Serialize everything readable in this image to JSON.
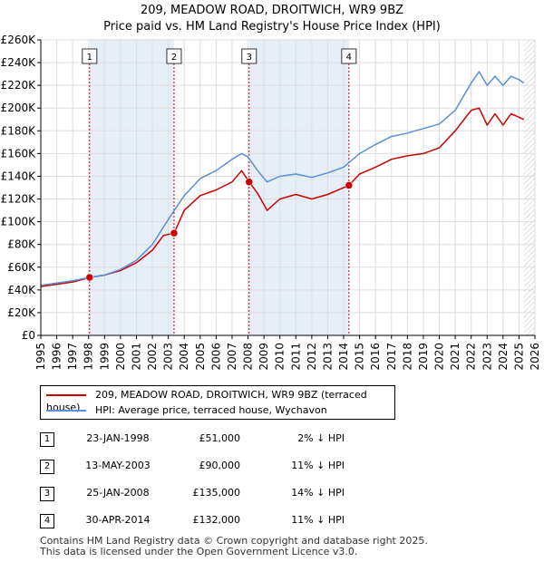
{
  "title_line1": "209, MEADOW ROAD, DROITWICH, WR9 9BZ",
  "title_line2": "Price paid vs. HM Land Registry's House Price Index (HPI)",
  "colors": {
    "red": "#cc0000",
    "blue": "#5b8fd6",
    "shade": "#e6eef8",
    "marker": "#cc0000"
  },
  "legend": {
    "property": "209, MEADOW ROAD, DROITWICH, WR9 9BZ (terraced house)",
    "hpi": "HPI: Average price, terraced house, Wychavon"
  },
  "sales": [
    {
      "num": "1",
      "date": "23-JAN-1998",
      "price": "£51,000",
      "diff": "2% ↓ HPI"
    },
    {
      "num": "2",
      "date": "13-MAY-2003",
      "price": "£90,000",
      "diff": "11% ↓ HPI"
    },
    {
      "num": "3",
      "date": "25-JAN-2008",
      "price": "£135,000",
      "diff": "14% ↓ HPI"
    },
    {
      "num": "4",
      "date": "30-APR-2014",
      "price": "£132,000",
      "diff": "11% ↓ HPI"
    }
  ],
  "footer_line1": "Contains HM Land Registry data © Crown copyright and database right 2025.",
  "footer_line2": "This data is licensed under the Open Government Licence v3.0.",
  "chart_data": {
    "type": "line",
    "xlim": [
      1995,
      2026
    ],
    "ylim": [
      0,
      260000
    ],
    "x_ticks": [
      1995,
      1996,
      1997,
      1998,
      1999,
      2000,
      2001,
      2002,
      2003,
      2004,
      2005,
      2006,
      2007,
      2008,
      2009,
      2010,
      2011,
      2012,
      2013,
      2014,
      2015,
      2016,
      2017,
      2018,
      2019,
      2020,
      2021,
      2022,
      2023,
      2024,
      2025,
      2026
    ],
    "y_ticks": [
      0,
      20000,
      40000,
      60000,
      80000,
      100000,
      120000,
      140000,
      160000,
      180000,
      200000,
      220000,
      240000,
      260000
    ],
    "y_tick_labels": [
      "£0",
      "£20K",
      "£40K",
      "£60K",
      "£80K",
      "£100K",
      "£120K",
      "£140K",
      "£160K",
      "£180K",
      "£200K",
      "£220K",
      "£240K",
      "£260K"
    ],
    "grid": true,
    "shaded_periods": [
      [
        1998.06,
        2003.36
      ],
      [
        2008.07,
        2014.33
      ]
    ],
    "hatched_after": 2025.3,
    "sale_markers": [
      {
        "label": "1",
        "x": 1998.06,
        "y": 51000
      },
      {
        "label": "2",
        "x": 2003.36,
        "y": 90000
      },
      {
        "label": "3",
        "x": 2008.07,
        "y": 135000
      },
      {
        "label": "4",
        "x": 2014.33,
        "y": 132000
      }
    ],
    "series": [
      {
        "name": "209, MEADOW ROAD, DROITWICH, WR9 9BZ (terraced house)",
        "color": "red",
        "x": [
          1995,
          1996,
          1997,
          1998.06,
          1999,
          2000,
          2001,
          2002,
          2002.7,
          2003.36,
          2004,
          2005,
          2006,
          2007,
          2007.6,
          2008.07,
          2008.6,
          2009.2,
          2010,
          2011,
          2012,
          2013,
          2014.33,
          2015,
          2016,
          2017,
          2018,
          2019,
          2020,
          2021,
          2022,
          2022.5,
          2023,
          2023.5,
          2024,
          2024.5,
          2025,
          2025.3
        ],
        "y": [
          43000,
          45000,
          47000,
          51000,
          53000,
          57000,
          64000,
          75000,
          88000,
          90000,
          110000,
          123000,
          128000,
          135000,
          145000,
          135000,
          125000,
          110000,
          120000,
          124000,
          120000,
          124000,
          132000,
          142000,
          148000,
          155000,
          158000,
          160000,
          165000,
          180000,
          198000,
          200000,
          185000,
          195000,
          185000,
          195000,
          192000,
          190000
        ]
      },
      {
        "name": "HPI: Average price, terraced house, Wychavon",
        "color": "blue",
        "x": [
          1995,
          1996,
          1997,
          1998,
          1999,
          2000,
          2001,
          2002,
          2003,
          2004,
          2005,
          2006,
          2007,
          2007.6,
          2008,
          2008.6,
          2009.2,
          2010,
          2011,
          2012,
          2013,
          2014,
          2015,
          2016,
          2017,
          2018,
          2019,
          2020,
          2021,
          2022,
          2022.5,
          2023,
          2023.5,
          2024,
          2024.5,
          2025,
          2025.3
        ],
        "y": [
          44000,
          46000,
          48000,
          51000,
          53000,
          58000,
          66000,
          80000,
          102000,
          123000,
          138000,
          145000,
          155000,
          160000,
          157000,
          145000,
          135000,
          140000,
          142000,
          139000,
          143000,
          148000,
          160000,
          168000,
          175000,
          178000,
          182000,
          186000,
          198000,
          222000,
          232000,
          220000,
          228000,
          220000,
          228000,
          225000,
          222000
        ]
      }
    ]
  }
}
